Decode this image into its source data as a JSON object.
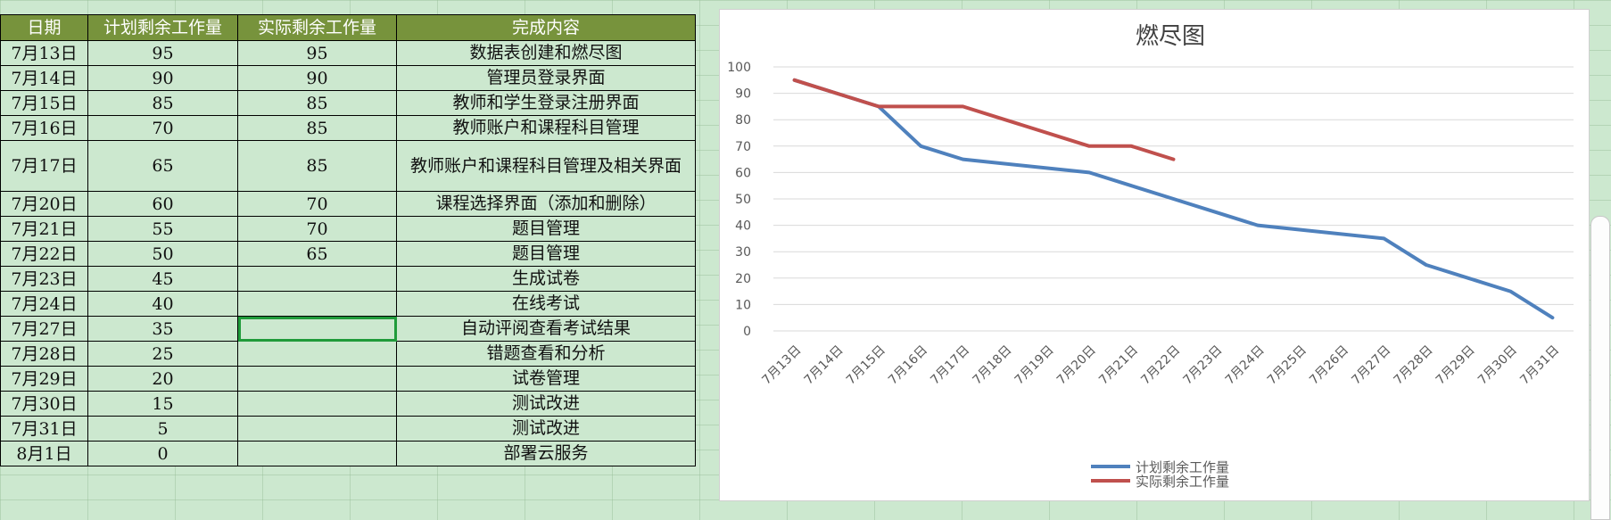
{
  "sheet": {
    "headers": [
      "日期",
      "计划剩余工作量",
      "实际剩余工作量",
      "完成内容"
    ],
    "rows": [
      {
        "date": "7月13日",
        "planned": "95",
        "actual": "95",
        "content": "数据表创建和燃尽图"
      },
      {
        "date": "7月14日",
        "planned": "90",
        "actual": "90",
        "content": "管理员登录界面"
      },
      {
        "date": "7月15日",
        "planned": "85",
        "actual": "85",
        "content": "教师和学生登录注册界面"
      },
      {
        "date": "7月16日",
        "planned": "70",
        "actual": "85",
        "content": "教师账户和课程科目管理"
      },
      {
        "date": "7月17日",
        "planned": "65",
        "actual": "85",
        "content": "教师账户和课程科目管理及相关界面"
      },
      {
        "date": "7月20日",
        "planned": "60",
        "actual": "70",
        "content": "课程选择界面（添加和删除）"
      },
      {
        "date": "7月21日",
        "planned": "55",
        "actual": "70",
        "content": "题目管理"
      },
      {
        "date": "7月22日",
        "planned": "50",
        "actual": "65",
        "content": "题目管理"
      },
      {
        "date": "7月23日",
        "planned": "45",
        "actual": "",
        "content": "生成试卷"
      },
      {
        "date": "7月24日",
        "planned": "40",
        "actual": "",
        "content": "在线考试"
      },
      {
        "date": "7月27日",
        "planned": "35",
        "actual": "",
        "content": "自动评阅查看考试结果"
      },
      {
        "date": "7月28日",
        "planned": "25",
        "actual": "",
        "content": "错题查看和分析"
      },
      {
        "date": "7月29日",
        "planned": "20",
        "actual": "",
        "content": "试卷管理"
      },
      {
        "date": "7月30日",
        "planned": "15",
        "actual": "",
        "content": "测试改进"
      },
      {
        "date": "7月31日",
        "planned": "5",
        "actual": "",
        "content": "测试改进"
      },
      {
        "date": "8月1日",
        "planned": "0",
        "actual": "",
        "content": "部署云服务"
      }
    ]
  },
  "chart_data": {
    "type": "line",
    "title": "燃尽图",
    "x": [
      "7月13日",
      "7月14日",
      "7月15日",
      "7月16日",
      "7月17日",
      "7月18日",
      "7月19日",
      "7月20日",
      "7月21日",
      "7月22日",
      "7月23日",
      "7月24日",
      "7月25日",
      "7月26日",
      "7月27日",
      "7月28日",
      "7月29日",
      "7月30日",
      "7月31日"
    ],
    "ylim": [
      0,
      100
    ],
    "yticks": [
      0,
      10,
      20,
      30,
      40,
      50,
      60,
      70,
      80,
      90,
      100
    ],
    "grid": true,
    "legend": "bottom",
    "series": [
      {
        "name": "计划剩余工作量",
        "color": "#4f81bd",
        "points": [
          [
            "7月13日",
            95
          ],
          [
            "7月14日",
            90
          ],
          [
            "7月15日",
            85
          ],
          [
            "7月16日",
            70
          ],
          [
            "7月17日",
            65
          ],
          [
            "7月20日",
            60
          ],
          [
            "7月21日",
            55
          ],
          [
            "7月22日",
            50
          ],
          [
            "7月23日",
            45
          ],
          [
            "7月24日",
            40
          ],
          [
            "7月27日",
            35
          ],
          [
            "7月28日",
            25
          ],
          [
            "7月29日",
            20
          ],
          [
            "7月30日",
            15
          ],
          [
            "7月31日",
            5
          ]
        ]
      },
      {
        "name": "实际剩余工作量",
        "color": "#c0504d",
        "points": [
          [
            "7月13日",
            95
          ],
          [
            "7月14日",
            90
          ],
          [
            "7月15日",
            85
          ],
          [
            "7月16日",
            85
          ],
          [
            "7月17日",
            85
          ],
          [
            "7月20日",
            70
          ],
          [
            "7月21日",
            70
          ],
          [
            "7月22日",
            65
          ]
        ]
      }
    ]
  }
}
